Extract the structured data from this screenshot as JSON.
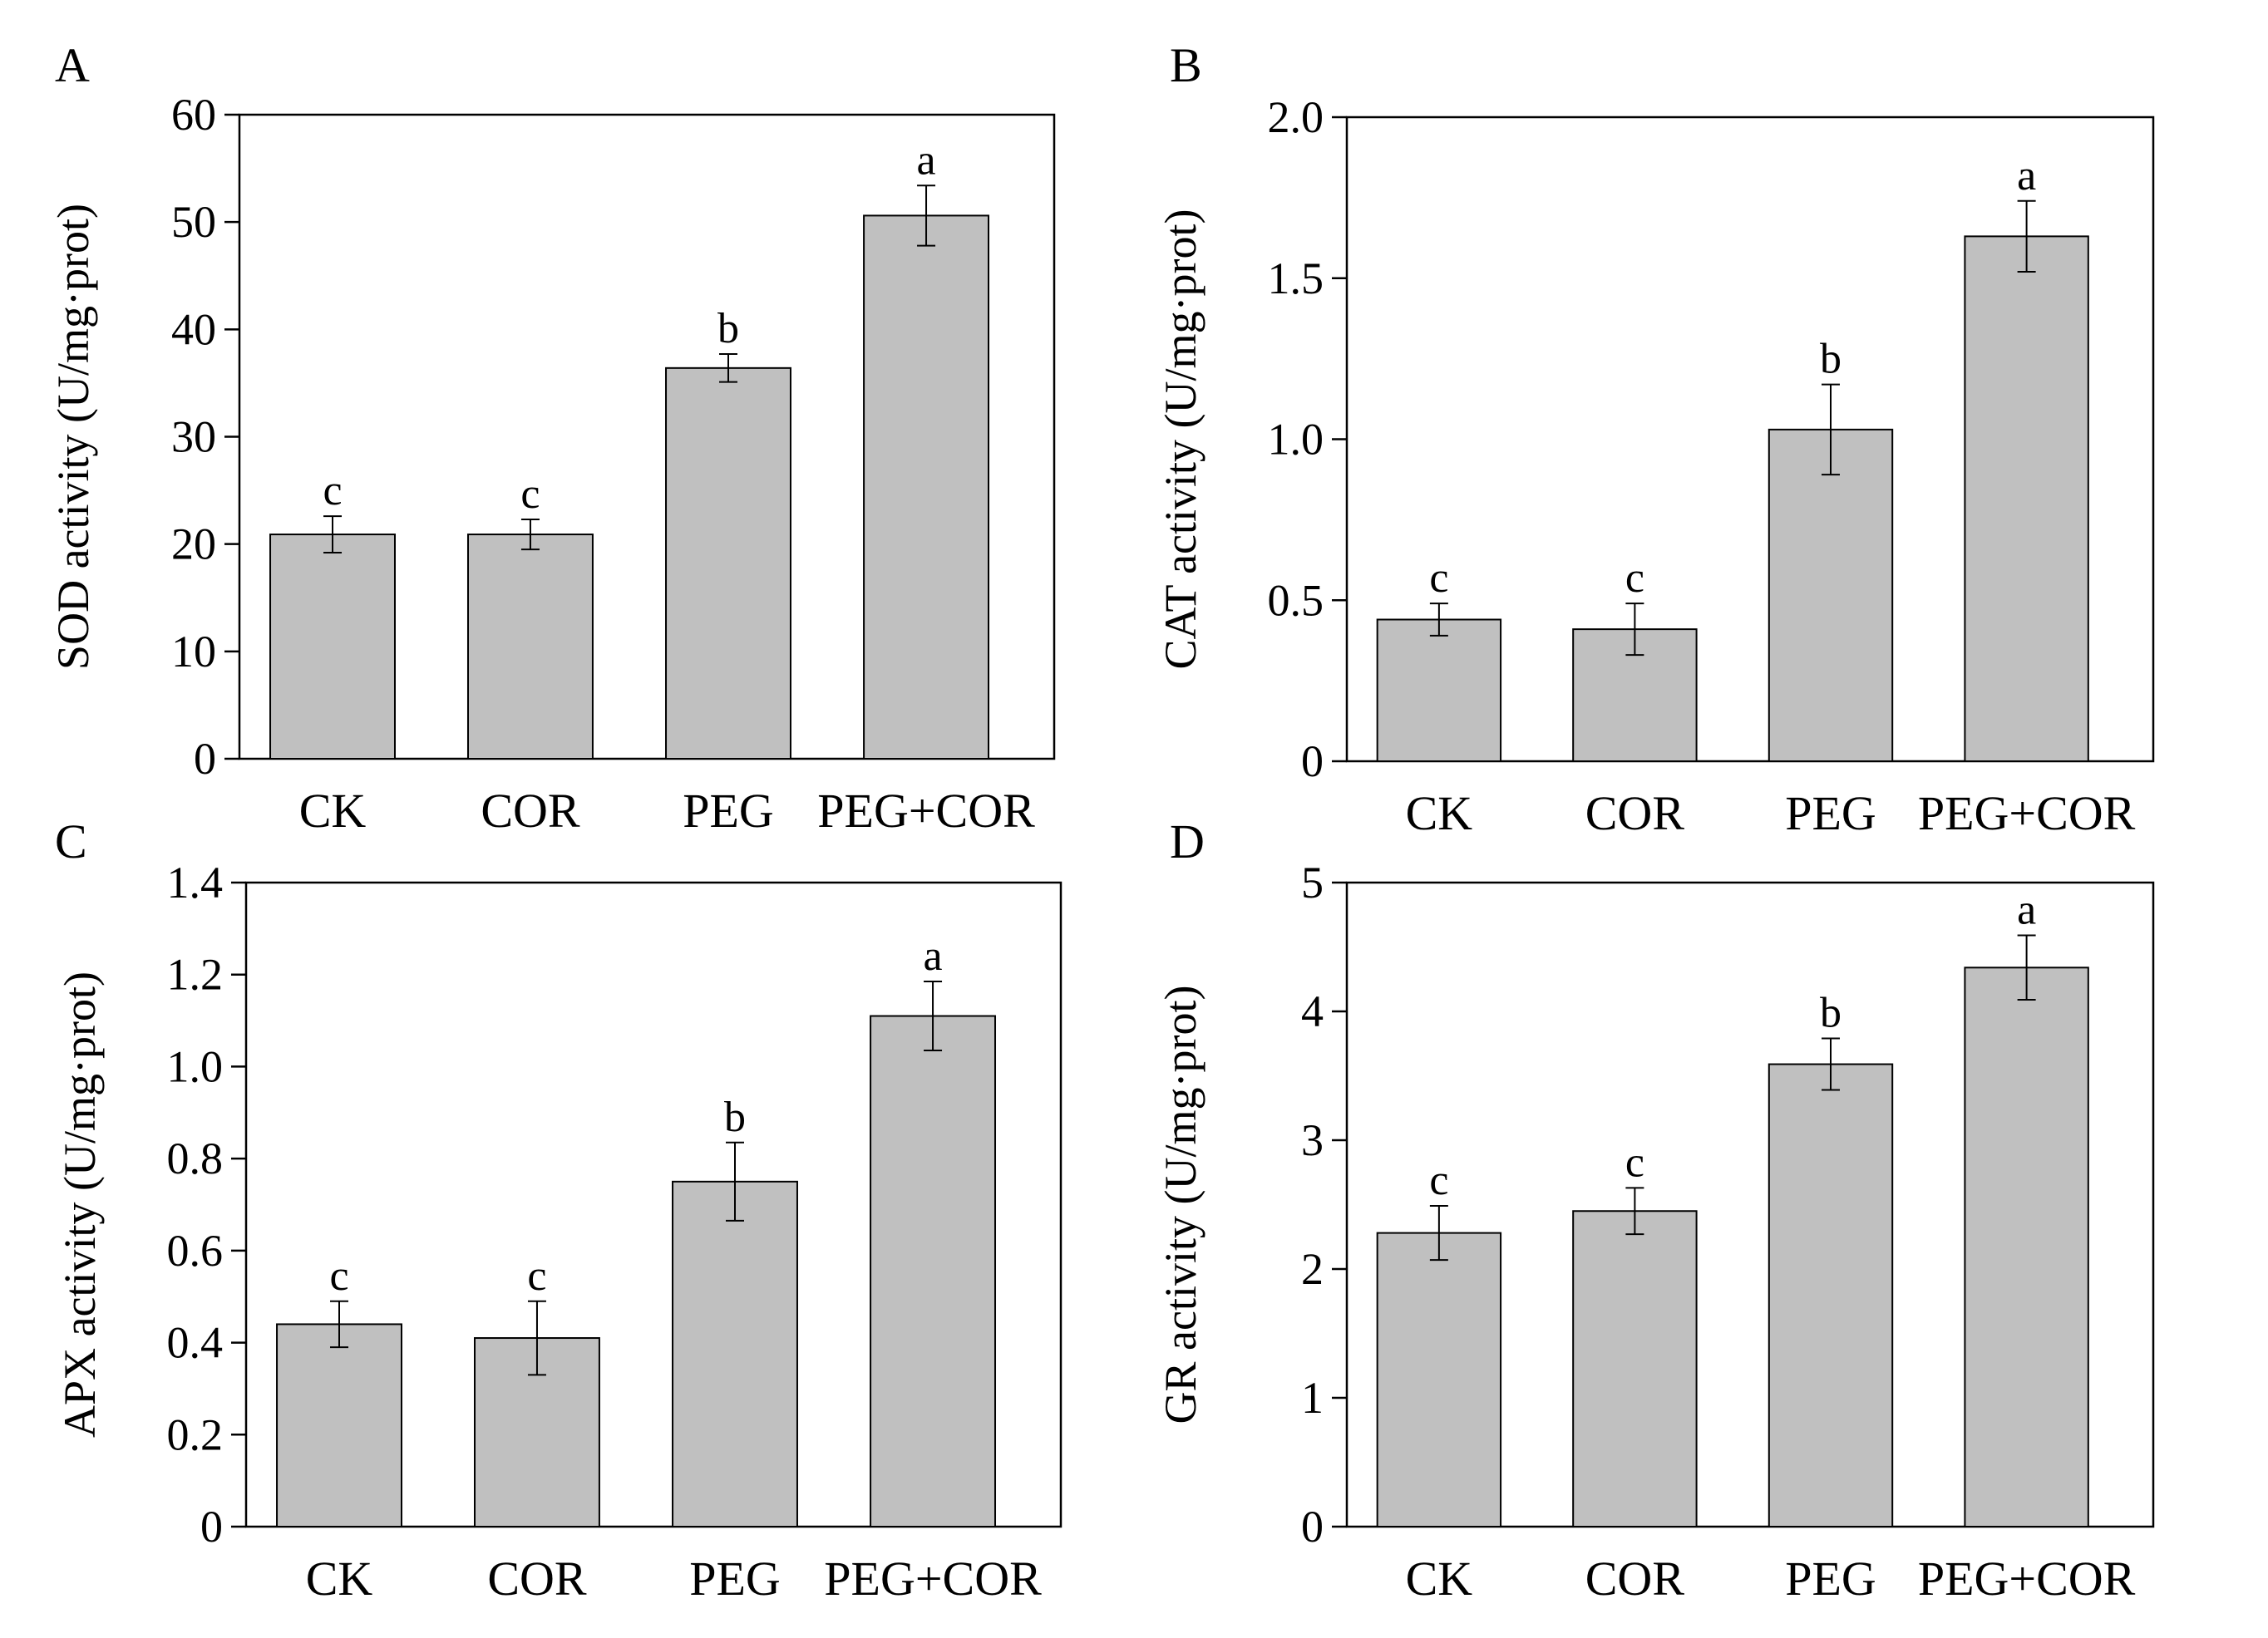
{
  "chart_data": [
    {
      "type": "bar",
      "panel": "A",
      "categories": [
        "CK",
        "COR",
        "PEG",
        "PEG+COR"
      ],
      "values": [
        20.9,
        20.9,
        36.4,
        50.6
      ],
      "errors": [
        1.7,
        1.4,
        1.3,
        2.8
      ],
      "significance": [
        "c",
        "c",
        "b",
        "a"
      ],
      "ylabel": "SOD activity (U/mg·prot)",
      "ylim": [
        0,
        60
      ],
      "yticks": [
        0,
        10,
        20,
        30,
        40,
        50,
        60
      ],
      "ytick_labels": [
        "0",
        "10",
        "20",
        "30",
        "40",
        "50",
        "60"
      ]
    },
    {
      "type": "bar",
      "panel": "B",
      "categories": [
        "CK",
        "COR",
        "PEG",
        "PEG+COR"
      ],
      "values": [
        0.44,
        0.41,
        1.03,
        1.63
      ],
      "errors": [
        0.05,
        0.08,
        0.14,
        0.11
      ],
      "significance": [
        "c",
        "c",
        "b",
        "a"
      ],
      "ylabel": "CAT activity (U/mg·prot)",
      "ylim": [
        0,
        2.0
      ],
      "yticks": [
        0,
        0.5,
        1.0,
        1.5,
        2.0
      ],
      "ytick_labels": [
        "0",
        "0.5",
        "1.0",
        "1.5",
        "2.0"
      ]
    },
    {
      "type": "bar",
      "panel": "C",
      "categories": [
        "CK",
        "COR",
        "PEG",
        "PEG+COR"
      ],
      "values": [
        0.44,
        0.41,
        0.75,
        1.11
      ],
      "errors": [
        0.05,
        0.08,
        0.085,
        0.075
      ],
      "significance": [
        "c",
        "c",
        "b",
        "a"
      ],
      "ylabel": "APX activity (U/mg·prot)",
      "ylim": [
        0,
        1.4
      ],
      "yticks": [
        0,
        0.2,
        0.4,
        0.6,
        0.8,
        1.0,
        1.2,
        1.4
      ],
      "ytick_labels": [
        "0",
        "0.2",
        "0.4",
        "0.6",
        "0.8",
        "1.0",
        "1.2",
        "1.4"
      ]
    },
    {
      "type": "bar",
      "panel": "D",
      "categories": [
        "CK",
        "COR",
        "PEG",
        "PEG+COR"
      ],
      "values": [
        2.28,
        2.45,
        3.59,
        4.34
      ],
      "errors": [
        0.21,
        0.18,
        0.2,
        0.25
      ],
      "significance": [
        "c",
        "c",
        "b",
        "a"
      ],
      "ylabel": "GR activity (U/mg·prot)",
      "ylim": [
        0,
        5
      ],
      "yticks": [
        0,
        1,
        2,
        3,
        4,
        5
      ],
      "ytick_labels": [
        "0",
        "1",
        "2",
        "3",
        "4",
        "5"
      ]
    }
  ],
  "style": {
    "bar_fill": "#c0c0c0",
    "bar_stroke": "#000000",
    "axis_color": "#000000"
  }
}
